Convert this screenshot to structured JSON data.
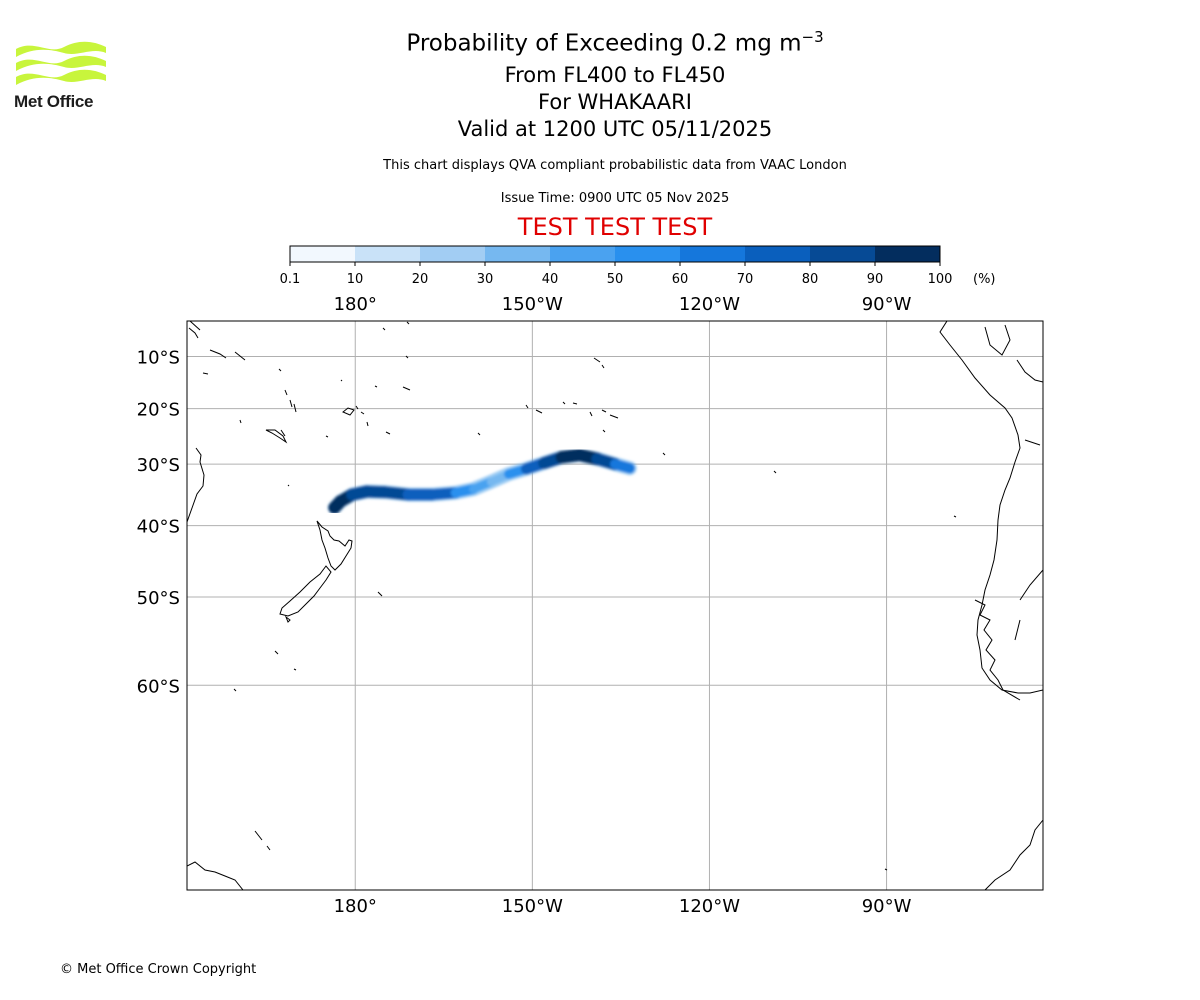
{
  "branding": {
    "logo_text": "Met Office",
    "logo_color": "#c8f53c",
    "copyright": "© Met Office Crown Copyright"
  },
  "header": {
    "title_main": "Probability of Exceeding 0.2 mg m",
    "title_sup": "−3",
    "flight_levels": "From FL400 to FL450",
    "volcano": "For WHAKAARI",
    "valid": "Valid at 1200 UTC 05/11/2025",
    "source_note": "This chart displays QVA compliant probabilistic data from VAAC London",
    "issue_time": "Issue Time: 0900 UTC 05 Nov 2025",
    "test_banner": "TEST TEST TEST"
  },
  "colorbar": {
    "unit": "(%)",
    "bounds": [
      "0.1",
      "10",
      "20",
      "30",
      "40",
      "50",
      "60",
      "70",
      "80",
      "90",
      "100"
    ],
    "colors": [
      "#f2f8fe",
      "#c9e2f8",
      "#a2cdf3",
      "#76b8f0",
      "#4aa2f0",
      "#2990ee",
      "#1577dc",
      "#0a5fbd",
      "#064a95",
      "#032d5e"
    ]
  },
  "map": {
    "x_ticks": [
      {
        "lon": 180,
        "label": "180°"
      },
      {
        "lon": 210,
        "label": "150°W"
      },
      {
        "lon": 240,
        "label": "120°W"
      },
      {
        "lon": 270,
        "label": "90°W"
      }
    ],
    "y_ticks": [
      {
        "lat": -10,
        "label": "10°S"
      },
      {
        "lat": -20,
        "label": "20°S"
      },
      {
        "lat": -30,
        "label": "30°S"
      },
      {
        "lat": -40,
        "label": "40°S"
      },
      {
        "lat": -50,
        "label": "50°S"
      },
      {
        "lat": -60,
        "label": "60°S"
      }
    ],
    "extent": {
      "lon_min": 151.5,
      "lon_max": 296.5,
      "lat_min": -75,
      "lat_max": -3
    },
    "plume": [
      {
        "lon": 176.5,
        "lat": -37.2,
        "p": 95
      },
      {
        "lon": 177.5,
        "lat": -36.2,
        "p": 92
      },
      {
        "lon": 179.5,
        "lat": -35.1,
        "p": 88
      },
      {
        "lon": 182,
        "lat": -34.6,
        "p": 85
      },
      {
        "lon": 185,
        "lat": -34.7,
        "p": 80
      },
      {
        "lon": 189,
        "lat": -35.1,
        "p": 80
      },
      {
        "lon": 193,
        "lat": -35.1,
        "p": 75
      },
      {
        "lon": 197,
        "lat": -34.8,
        "p": 65
      },
      {
        "lon": 200,
        "lat": -34.2,
        "p": 50
      },
      {
        "lon": 203,
        "lat": -33.0,
        "p": 35
      },
      {
        "lon": 206,
        "lat": -31.7,
        "p": 40
      },
      {
        "lon": 209,
        "lat": -30.8,
        "p": 65
      },
      {
        "lon": 212,
        "lat": -29.8,
        "p": 80
      },
      {
        "lon": 215,
        "lat": -28.8,
        "p": 90
      },
      {
        "lon": 218,
        "lat": -28.4,
        "p": 95
      },
      {
        "lon": 221,
        "lat": -29.1,
        "p": 92
      },
      {
        "lon": 224,
        "lat": -30.0,
        "p": 75
      },
      {
        "lon": 226.5,
        "lat": -30.7,
        "p": 45
      }
    ]
  }
}
